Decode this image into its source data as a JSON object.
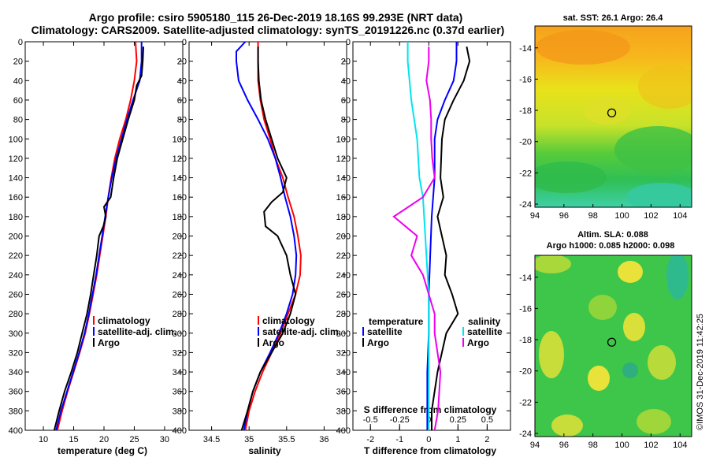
{
  "title": {
    "line1": "Argo profile: csiro 5905180_115 26-Dec-2019 18.16S 99.293E (NRT data)",
    "line2": "Climatology: CARS2009. Satellite-adjusted climatology: synTS_20191226.nc (0.37d earlier)"
  },
  "colors": {
    "climatology": "#ff0000",
    "satellite": "#0000ff",
    "argo": "#000000",
    "sat_salinity": "#00e5ee",
    "argo_salinity": "#ee00ee"
  },
  "depth_ticks": [
    "0",
    "20",
    "40",
    "60",
    "80",
    "100",
    "120",
    "140",
    "160",
    "180",
    "200",
    "220",
    "240",
    "260",
    "280",
    "300",
    "320",
    "340",
    "360",
    "380",
    "400"
  ],
  "chart_data": [
    {
      "type": "line",
      "name": "temperature",
      "xlabel": "temperature (deg C)",
      "ylabel": "depth",
      "xlim": [
        7,
        33
      ],
      "ylim": [
        400,
        0
      ],
      "xticks": [
        "10",
        "15",
        "20",
        "25",
        "30"
      ],
      "legend": [
        "climatology",
        "satellite-adj. clim.",
        "Argo"
      ],
      "series": [
        {
          "name": "climatology",
          "color": "#ff0000",
          "points": [
            [
              25.2,
              0
            ],
            [
              25.4,
              20
            ],
            [
              25.0,
              40
            ],
            [
              24.4,
              60
            ],
            [
              23.6,
              80
            ],
            [
              22.6,
              100
            ],
            [
              21.8,
              120
            ],
            [
              21.2,
              140
            ],
            [
              20.7,
              160
            ],
            [
              20.3,
              180
            ],
            [
              19.8,
              200
            ],
            [
              19.3,
              220
            ],
            [
              18.8,
              240
            ],
            [
              18.2,
              260
            ],
            [
              17.6,
              280
            ],
            [
              16.9,
              300
            ],
            [
              16.0,
              320
            ],
            [
              15.0,
              340
            ],
            [
              14.0,
              360
            ],
            [
              13.1,
              380
            ],
            [
              12.3,
              400
            ]
          ]
        },
        {
          "name": "satellite-adj. clim.",
          "color": "#0000ff",
          "points": [
            [
              26.2,
              0
            ],
            [
              26.2,
              20
            ],
            [
              25.9,
              40
            ],
            [
              24.8,
              60
            ],
            [
              23.8,
              80
            ],
            [
              22.9,
              100
            ],
            [
              22.0,
              120
            ],
            [
              21.3,
              140
            ],
            [
              20.7,
              160
            ],
            [
              20.2,
              180
            ],
            [
              19.7,
              200
            ],
            [
              19.2,
              220
            ],
            [
              18.7,
              240
            ],
            [
              18.1,
              260
            ],
            [
              17.5,
              280
            ],
            [
              16.8,
              300
            ],
            [
              15.9,
              320
            ],
            [
              14.9,
              340
            ],
            [
              13.9,
              360
            ],
            [
              12.9,
              380
            ],
            [
              12.1,
              400
            ]
          ]
        },
        {
          "name": "Argo",
          "color": "#000000",
          "points": [
            [
              26.5,
              5
            ],
            [
              26.4,
              20
            ],
            [
              26.2,
              35
            ],
            [
              25.4,
              45
            ],
            [
              25.0,
              60
            ],
            [
              24.0,
              80
            ],
            [
              23.1,
              100
            ],
            [
              22.2,
              120
            ],
            [
              21.6,
              140
            ],
            [
              21.1,
              160
            ],
            [
              20.0,
              170
            ],
            [
              20.3,
              180
            ],
            [
              19.9,
              190
            ],
            [
              19.2,
              200
            ],
            [
              18.8,
              220
            ],
            [
              18.3,
              240
            ],
            [
              17.8,
              260
            ],
            [
              17.2,
              280
            ],
            [
              16.4,
              300
            ],
            [
              15.6,
              320
            ],
            [
              14.6,
              340
            ],
            [
              13.5,
              360
            ],
            [
              12.6,
              380
            ],
            [
              11.8,
              400
            ]
          ]
        }
      ]
    },
    {
      "type": "line",
      "name": "salinity",
      "xlabel": "salinity",
      "ylabel": "depth",
      "xlim": [
        34.2,
        36.3
      ],
      "ylim": [
        400,
        0
      ],
      "xticks": [
        "34.5",
        "35",
        "35.5",
        "36"
      ],
      "legend": [
        "climatology",
        "satellite-adj. clim.",
        "Argo"
      ],
      "series": [
        {
          "name": "climatology",
          "color": "#ff0000",
          "points": [
            [
              35.12,
              0
            ],
            [
              35.12,
              20
            ],
            [
              35.12,
              40
            ],
            [
              35.15,
              60
            ],
            [
              35.2,
              80
            ],
            [
              35.28,
              100
            ],
            [
              35.35,
              120
            ],
            [
              35.45,
              140
            ],
            [
              35.52,
              160
            ],
            [
              35.6,
              180
            ],
            [
              35.65,
              200
            ],
            [
              35.69,
              220
            ],
            [
              35.68,
              240
            ],
            [
              35.62,
              260
            ],
            [
              35.52,
              280
            ],
            [
              35.42,
              300
            ],
            [
              35.3,
              320
            ],
            [
              35.18,
              340
            ],
            [
              35.08,
              360
            ],
            [
              35.0,
              380
            ],
            [
              34.95,
              400
            ]
          ]
        },
        {
          "name": "satellite-adj. clim.",
          "color": "#0000ff",
          "points": [
            [
              34.95,
              0
            ],
            [
              34.83,
              10
            ],
            [
              34.83,
              20
            ],
            [
              34.86,
              40
            ],
            [
              34.98,
              60
            ],
            [
              35.12,
              80
            ],
            [
              35.25,
              100
            ],
            [
              35.35,
              120
            ],
            [
              35.42,
              140
            ],
            [
              35.48,
              160
            ],
            [
              35.55,
              180
            ],
            [
              35.6,
              200
            ],
            [
              35.63,
              220
            ],
            [
              35.62,
              240
            ],
            [
              35.58,
              260
            ],
            [
              35.5,
              280
            ],
            [
              35.4,
              300
            ],
            [
              35.28,
              320
            ],
            [
              35.15,
              340
            ],
            [
              35.05,
              360
            ],
            [
              34.98,
              380
            ],
            [
              34.93,
              400
            ]
          ]
        },
        {
          "name": "Argo",
          "color": "#000000",
          "points": [
            [
              35.12,
              5
            ],
            [
              35.12,
              20
            ],
            [
              35.13,
              40
            ],
            [
              35.16,
              60
            ],
            [
              35.22,
              80
            ],
            [
              35.3,
              100
            ],
            [
              35.38,
              120
            ],
            [
              35.5,
              140
            ],
            [
              35.45,
              155
            ],
            [
              35.3,
              165
            ],
            [
              35.2,
              175
            ],
            [
              35.22,
              190
            ],
            [
              35.38,
              200
            ],
            [
              35.5,
              220
            ],
            [
              35.55,
              240
            ],
            [
              35.62,
              260
            ],
            [
              35.55,
              280
            ],
            [
              35.45,
              300
            ],
            [
              35.3,
              320
            ],
            [
              35.15,
              340
            ],
            [
              35.05,
              360
            ],
            [
              34.98,
              380
            ],
            [
              34.9,
              400
            ]
          ]
        }
      ]
    },
    {
      "type": "line",
      "name": "difference from climatology",
      "xlabel": "T difference from climatology",
      "xlabel2": "S difference from climatology",
      "ylim": [
        400,
        0
      ],
      "xlim": [
        -2.6,
        2.8
      ],
      "xticks": [
        "-2",
        "-1",
        "0",
        "1",
        "2"
      ],
      "x2lim": [
        -0.65,
        0.7
      ],
      "x2ticks": [
        "-0.5",
        "-0.25",
        "0",
        "0.25",
        "0.5"
      ],
      "legend_temperature_title": "temperature",
      "legend_salinity_title": "salinity",
      "legend": [
        "satellite",
        "Argo",
        "satellite",
        "Argo"
      ],
      "series": [
        {
          "name": "temperature satellite",
          "color": "#0000ff",
          "points": [
            [
              0.95,
              0
            ],
            [
              0.95,
              20
            ],
            [
              0.85,
              40
            ],
            [
              0.55,
              60
            ],
            [
              0.3,
              80
            ],
            [
              0.2,
              100
            ],
            [
              0.2,
              140
            ],
            [
              0.1,
              180
            ],
            [
              0.05,
              220
            ],
            [
              0.0,
              260
            ],
            [
              0.0,
              300
            ],
            [
              -0.05,
              340
            ],
            [
              -0.05,
              400
            ]
          ]
        },
        {
          "name": "temperature Argo",
          "color": "#000000",
          "points": [
            [
              1.3,
              5
            ],
            [
              1.4,
              20
            ],
            [
              1.2,
              40
            ],
            [
              0.85,
              60
            ],
            [
              0.55,
              80
            ],
            [
              0.45,
              100
            ],
            [
              0.4,
              140
            ],
            [
              0.5,
              160
            ],
            [
              0.3,
              180
            ],
            [
              0.6,
              220
            ],
            [
              0.55,
              240
            ],
            [
              0.8,
              260
            ],
            [
              1.0,
              280
            ],
            [
              0.6,
              300
            ],
            [
              0.3,
              340
            ],
            [
              0.1,
              380
            ],
            [
              0.1,
              400
            ]
          ]
        },
        {
          "name": "salinity satellite",
          "color": "#00e5ee",
          "points": [
            [
              -0.18,
              0
            ],
            [
              -0.18,
              20
            ],
            [
              -0.15,
              60
            ],
            [
              -0.1,
              100
            ],
            [
              -0.08,
              140
            ],
            [
              -0.05,
              160
            ],
            [
              -0.04,
              180
            ],
            [
              -0.02,
              220
            ],
            [
              0.0,
              260
            ],
            [
              0.0,
              300
            ],
            [
              0.0,
              340
            ],
            [
              0.0,
              400
            ]
          ]
        },
        {
          "name": "salinity Argo",
          "color": "#ee00ee",
          "points": [
            [
              0.0,
              5
            ],
            [
              0.0,
              20
            ],
            [
              -0.02,
              40
            ],
            [
              0.01,
              60
            ],
            [
              0.02,
              80
            ],
            [
              0.02,
              100
            ],
            [
              0.03,
              120
            ],
            [
              0.05,
              140
            ],
            [
              -0.05,
              160
            ],
            [
              -0.3,
              180
            ],
            [
              -0.2,
              190
            ],
            [
              -0.1,
              200
            ],
            [
              -0.15,
              220
            ],
            [
              -0.05,
              240
            ],
            [
              0.0,
              260
            ],
            [
              0.05,
              280
            ],
            [
              0.05,
              300
            ],
            [
              0.1,
              340
            ],
            [
              0.08,
              380
            ],
            [
              0.05,
              400
            ]
          ]
        }
      ]
    }
  ],
  "maps": [
    {
      "title": "sat. SST: 26.1 Argo: 26.4",
      "xlim": [
        94,
        104.8
      ],
      "ylim": [
        -24.2,
        -12.6
      ],
      "xticks": [
        "94",
        "96",
        "98",
        "100",
        "102",
        "104"
      ],
      "yticks": [
        "-14",
        "-16",
        "-18",
        "-20",
        "-22",
        "-24"
      ],
      "marker": [
        99.293,
        -18.16
      ]
    },
    {
      "title": "Altim. SLA: 0.088",
      "title2": "Argo h1000: 0.085 h2000: 0.098",
      "xlim": [
        94,
        104.8
      ],
      "ylim": [
        -24.2,
        -12.6
      ],
      "xticks": [
        "94",
        "96",
        "98",
        "100",
        "102",
        "104"
      ],
      "yticks": [
        "-14",
        "-16",
        "-18",
        "-20",
        "-22",
        "-24"
      ],
      "marker": [
        99.293,
        -18.16
      ]
    }
  ],
  "credit": "©IMOS 31-Dec-2019 11:42:25"
}
